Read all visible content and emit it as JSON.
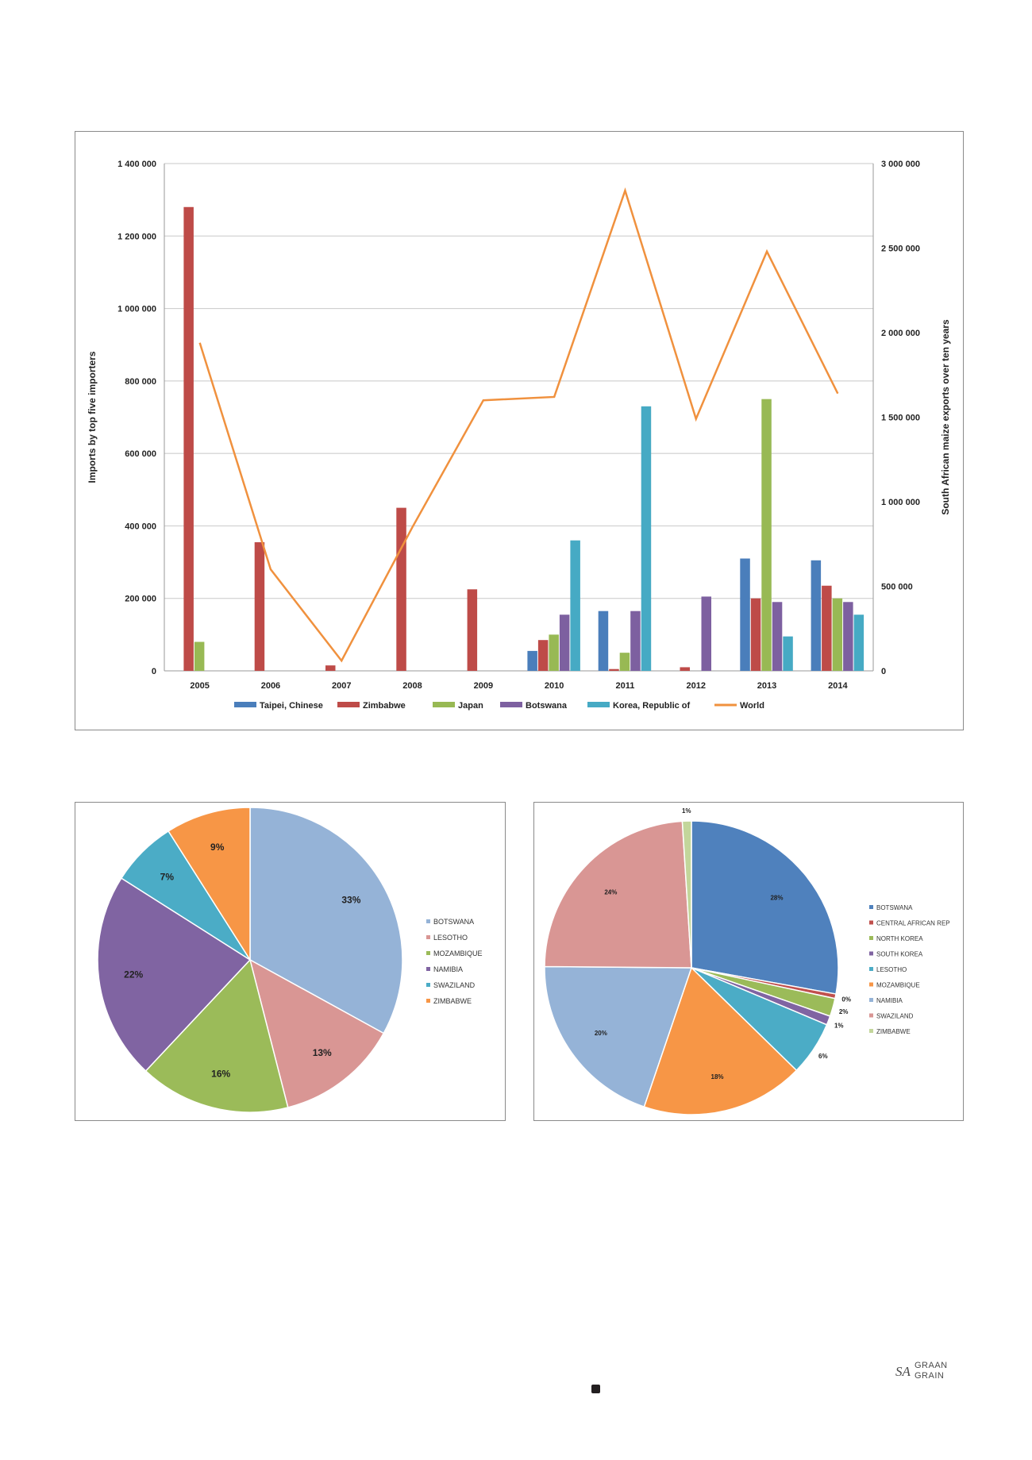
{
  "chart_data": [
    {
      "type": "bar",
      "title": "",
      "categories": [
        "2005",
        "2006",
        "2007",
        "2008",
        "2009",
        "2010",
        "2011",
        "2012",
        "2013",
        "2014"
      ],
      "ylabel": "Imports by top five importers",
      "y2label": "South African maize exports over ten years",
      "ylim": [
        0,
        1400000
      ],
      "y2lim": [
        0,
        3000000
      ],
      "yticks": [
        "0",
        "200 000",
        "400 000",
        "600 000",
        "800 000",
        "1 000 000",
        "1 200 000",
        "1 400 000"
      ],
      "y2ticks": [
        "0",
        "500 000",
        "1 000 000",
        "1 500 000",
        "2 000 000",
        "2 500 000",
        "3 000 000"
      ],
      "grid": true,
      "legend_position": "bottom",
      "series": [
        {
          "name": "Taipei, Chinese",
          "color": "#4a7ebb",
          "values": [
            0,
            0,
            0,
            0,
            0,
            55000,
            165000,
            0,
            310000,
            305000
          ]
        },
        {
          "name": "Zimbabwe",
          "color": "#be4b48",
          "values": [
            1280000,
            355000,
            15000,
            450000,
            225000,
            85000,
            5000,
            10000,
            200000,
            235000
          ]
        },
        {
          "name": "Japan",
          "color": "#98b954",
          "values": [
            80000,
            0,
            0,
            0,
            0,
            100000,
            50000,
            0,
            750000,
            200000
          ]
        },
        {
          "name": "Botswana",
          "color": "#7d60a0",
          "values": [
            0,
            0,
            0,
            0,
            0,
            155000,
            165000,
            205000,
            190000,
            190000
          ]
        },
        {
          "name": "Korea, Republic of",
          "color": "#46aac4",
          "values": [
            0,
            0,
            0,
            0,
            0,
            360000,
            730000,
            0,
            95000,
            155000
          ]
        }
      ],
      "line_series": {
        "name": "World",
        "color": "#f0913e",
        "axis": "right",
        "values": [
          1940000,
          600000,
          60000,
          850000,
          1600000,
          1620000,
          2840000,
          1490000,
          2480000,
          1640000
        ]
      }
    },
    {
      "type": "pie",
      "legend_position": "right",
      "categories": [
        "BOTSWANA",
        "LESOTHO",
        "MOZAMBIQUE",
        "NAMIBIA",
        "SWAZILAND",
        "ZIMBABWE"
      ],
      "values": [
        33,
        13,
        16,
        22,
        7,
        9
      ],
      "labels": [
        "33%",
        "13%",
        "16%",
        "22%",
        "7%",
        "9%"
      ],
      "colors": [
        "#95b3d7",
        "#d99694",
        "#9bbb59",
        "#8064a2",
        "#4bacc6",
        "#f79646"
      ]
    },
    {
      "type": "pie",
      "legend_position": "right",
      "categories": [
        "BOTSWANA",
        "CENTRAL AFRICAN REP",
        "NORTH KOREA",
        "SOUTH KOREA",
        "LESOTHO",
        "MOZAMBIQUE",
        "NAMIBIA",
        "SWAZILAND",
        "ZIMBABWE"
      ],
      "values": [
        28,
        0.5,
        2,
        1,
        6,
        18,
        20,
        24,
        1
      ],
      "labels": [
        "28%",
        "0%",
        "2%",
        "1%",
        "6%",
        "18%",
        "20%",
        "24%",
        "1%"
      ],
      "colors": [
        "#4f81bd",
        "#c0504d",
        "#9bbb59",
        "#8064a2",
        "#4bacc6",
        "#f79646",
        "#95b3d7",
        "#d99694",
        "#c3d69b"
      ]
    }
  ],
  "footer": {
    "logo_graan": "GRAAN",
    "logo_sa": "SA",
    "logo_grain": "GRAIN"
  }
}
